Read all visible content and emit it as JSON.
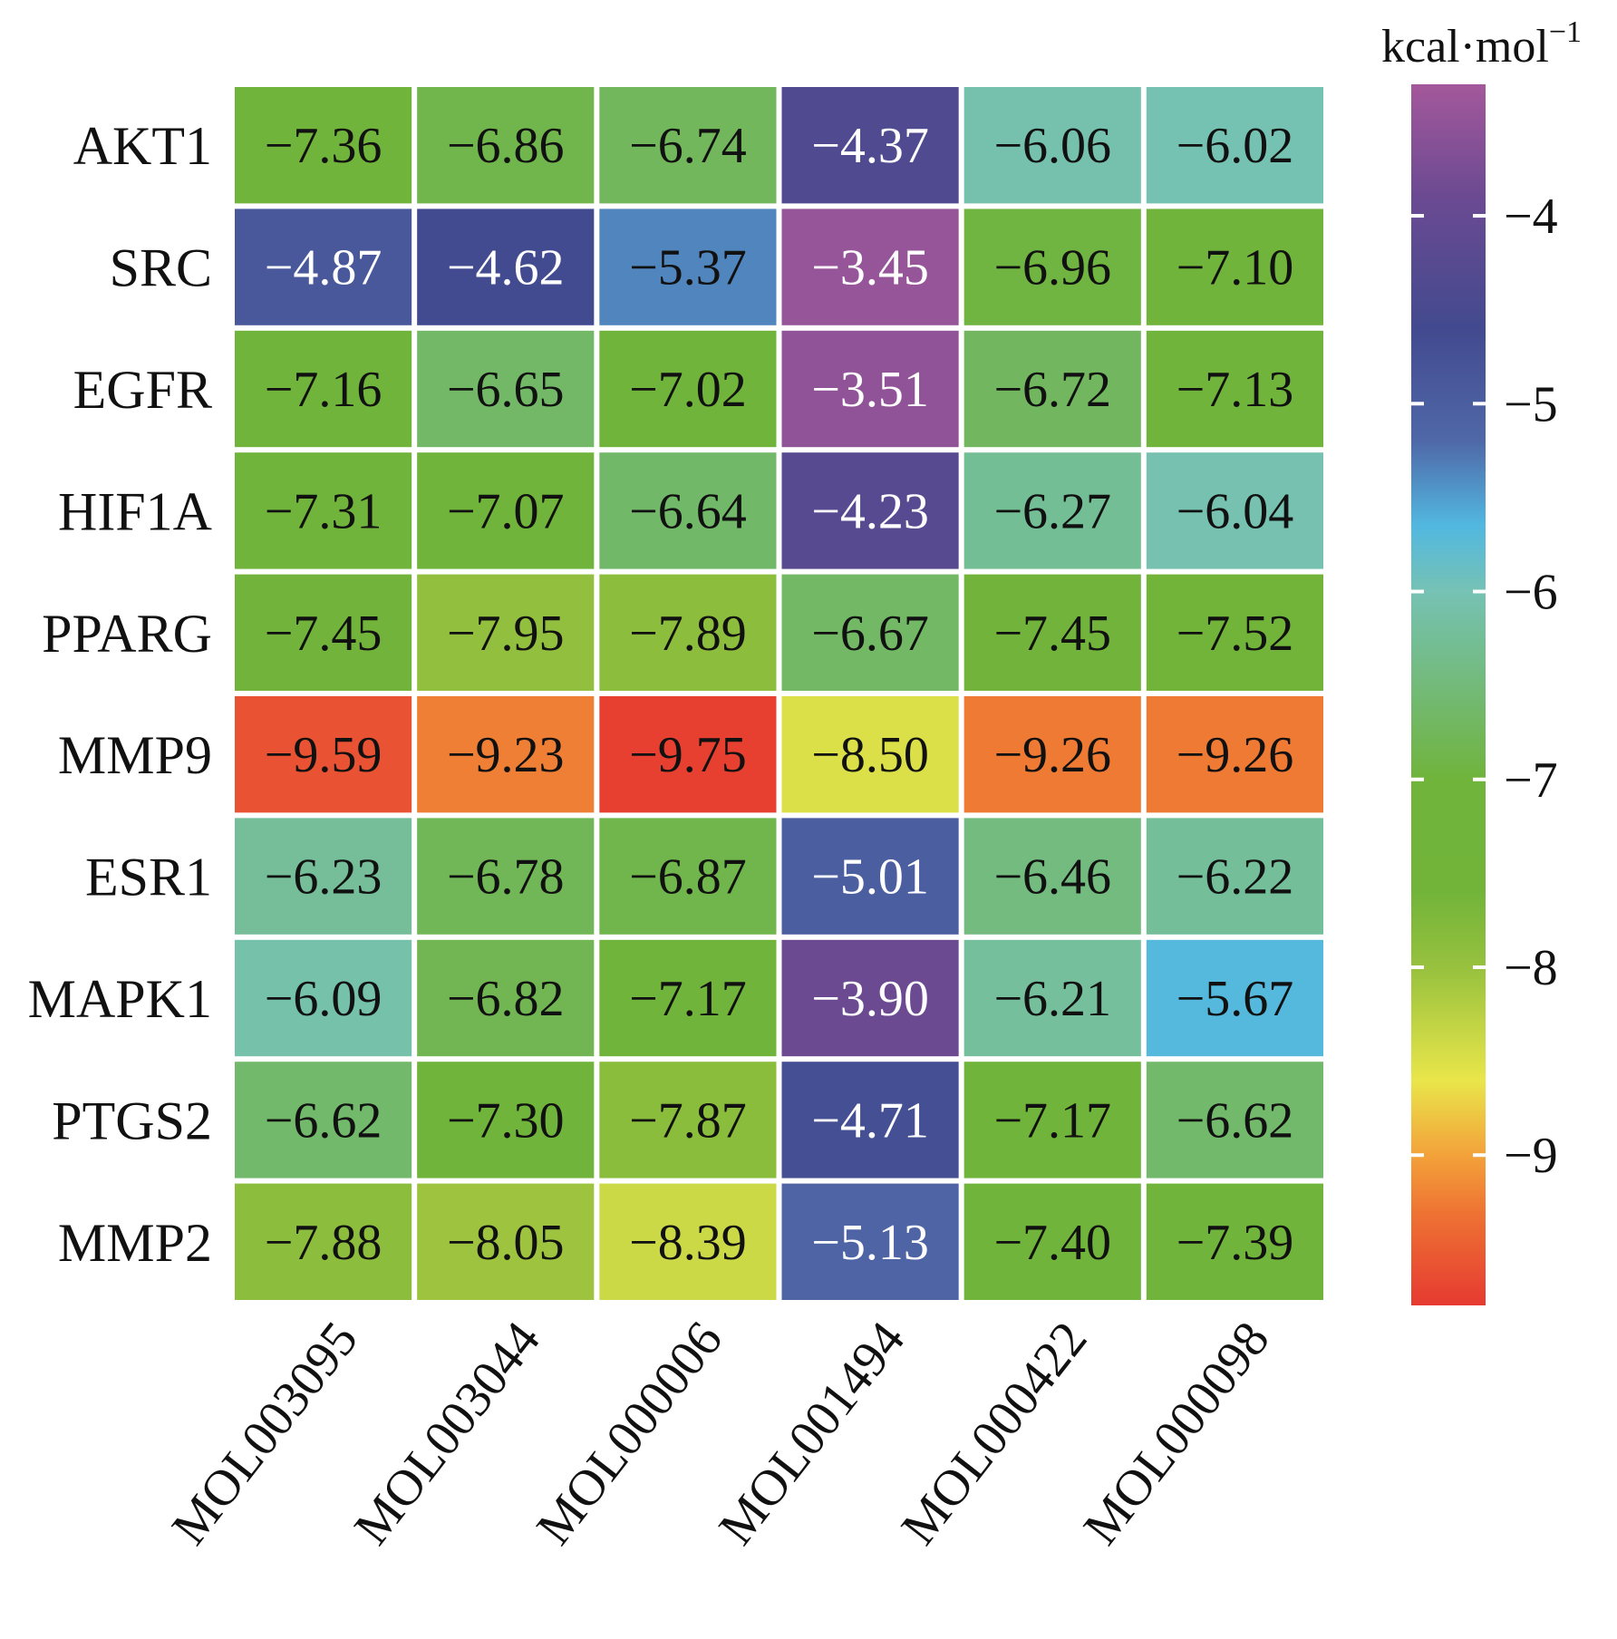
{
  "chart_data": {
    "type": "heatmap",
    "title": "",
    "rows": [
      "AKT1",
      "SRC",
      "EGFR",
      "HIF1A",
      "PPARG",
      "MMP9",
      "ESR1",
      "MAPK1",
      "PTGS2",
      "MMP2"
    ],
    "columns": [
      "MOL003095",
      "MOL003044",
      "MOL000006",
      "MOL001494",
      "MOL000422",
      "MOL000098"
    ],
    "values": [
      [
        -7.36,
        -6.86,
        -6.74,
        -4.37,
        -6.06,
        -6.02
      ],
      [
        -4.87,
        -4.62,
        -5.37,
        -3.45,
        -6.96,
        -7.1
      ],
      [
        -7.16,
        -6.65,
        -7.02,
        -3.51,
        -6.72,
        -7.13
      ],
      [
        -7.31,
        -7.07,
        -6.64,
        -4.23,
        -6.27,
        -6.04
      ],
      [
        -7.45,
        -7.95,
        -7.89,
        -6.67,
        -7.45,
        -7.52
      ],
      [
        -9.59,
        -9.23,
        -9.75,
        -8.5,
        -9.26,
        -9.26
      ],
      [
        -6.23,
        -6.78,
        -6.87,
        -5.01,
        -6.46,
        -6.22
      ],
      [
        -6.09,
        -6.82,
        -7.17,
        -3.9,
        -6.21,
        -5.67
      ],
      [
        -6.62,
        -7.3,
        -7.87,
        -4.71,
        -7.17,
        -6.62
      ],
      [
        -7.88,
        -8.05,
        -8.39,
        -5.13,
        -7.4,
        -7.39
      ]
    ],
    "value_labels": [
      [
        "−7.36",
        "−6.86",
        "−6.74",
        "−4.37",
        "−6.06",
        "−6.02"
      ],
      [
        "−4.87",
        "−4.62",
        "−5.37",
        "−3.45",
        "−6.96",
        "−7.10"
      ],
      [
        "−7.16",
        "−6.65",
        "−7.02",
        "−3.51",
        "−6.72",
        "−7.13"
      ],
      [
        "−7.31",
        "−7.07",
        "−6.64",
        "−4.23",
        "−6.27",
        "−6.04"
      ],
      [
        "−7.45",
        "−7.95",
        "−7.89",
        "−6.67",
        "−7.45",
        "−7.52"
      ],
      [
        "−9.59",
        "−9.23",
        "−9.75",
        "−8.50",
        "−9.26",
        "−9.26"
      ],
      [
        "−6.23",
        "−6.78",
        "−6.87",
        "−5.01",
        "−6.46",
        "−6.22"
      ],
      [
        "−6.09",
        "−6.82",
        "−7.17",
        "−3.90",
        "−6.21",
        "−5.67"
      ],
      [
        "−6.62",
        "−7.30",
        "−7.87",
        "−4.71",
        "−7.17",
        "−6.62"
      ],
      [
        "−7.88",
        "−8.05",
        "−8.39",
        "−5.13",
        "−7.40",
        "−7.39"
      ]
    ],
    "colorbar": {
      "label": "kcal·mol",
      "label_superscript": "−1",
      "range": [
        -9.8,
        -3.3
      ],
      "ticks": [
        -4,
        -5,
        -6,
        -7,
        -8,
        -9
      ],
      "tick_labels": [
        "−4",
        "−5",
        "−6",
        "−7",
        "−8",
        "−9"
      ],
      "stops": [
        {
          "value": -3.3,
          "color": "#a4589b"
        },
        {
          "value": -3.9,
          "color": "#6b4a92"
        },
        {
          "value": -4.6,
          "color": "#434a8f"
        },
        {
          "value": -5.2,
          "color": "#4f68a8"
        },
        {
          "value": -5.65,
          "color": "#52b8e0"
        },
        {
          "value": -6.0,
          "color": "#76c2b4"
        },
        {
          "value": -6.5,
          "color": "#73ba7a"
        },
        {
          "value": -7.0,
          "color": "#70b43c"
        },
        {
          "value": -7.6,
          "color": "#72b43a"
        },
        {
          "value": -8.0,
          "color": "#97c13e"
        },
        {
          "value": -8.6,
          "color": "#e9e64a"
        },
        {
          "value": -9.0,
          "color": "#f3a23a"
        },
        {
          "value": -9.3,
          "color": "#ee7433"
        },
        {
          "value": -9.8,
          "color": "#e63a31"
        }
      ]
    },
    "light_text_threshold": -5.2,
    "legend": "right"
  }
}
